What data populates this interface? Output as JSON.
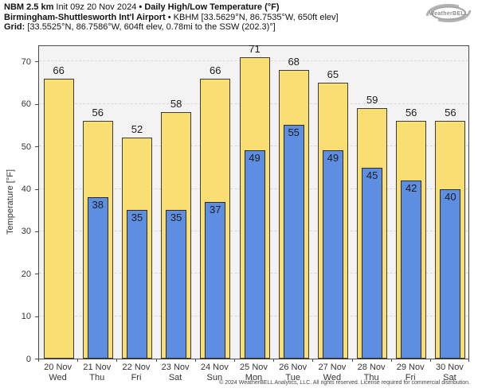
{
  "header": {
    "line1": {
      "bold1": "NBM 2.5 km",
      "normal1": "Init 09z 20 Nov 2024",
      "bullet": "•",
      "bold2": "Daily High/Low Temperature (°F)"
    },
    "line2": {
      "bold1": "Birmingham-Shuttlesworth Int'l Airport",
      "bullet": "•",
      "normal1": "KBHM [33.5629°N, 86.7535°W, 650ft elev]"
    },
    "line3": {
      "bold1": "Grid:",
      "normal1": "[33.5525°N, 86.7586°W, 604ft elev, 0.78mi to the SSW (202.3)°]"
    }
  },
  "logo": {
    "brand": "WeatherBELL",
    "sub": "Analytics LLC"
  },
  "footer": {
    "copyright": "© 2024 WeatherBELL Analytics, LLC. All rights reserved. License required for commercial distribution."
  },
  "chart_data": {
    "type": "bar",
    "title": "NBM 2.5 km Init 09z 20 Nov 2024 • Daily High/Low Temperature (°F)",
    "subtitle": "Birmingham-Shuttlesworth Int'l Airport • KBHM",
    "ylabel": "Temperature [°F]",
    "ylim": [
      0,
      74
    ],
    "yticks": [
      0,
      10,
      20,
      30,
      40,
      50,
      60,
      70
    ],
    "grid": "horizontal-dashed",
    "legend_position": "none",
    "categories": [
      "20 Nov",
      "21 Nov",
      "22 Nov",
      "23 Nov",
      "24 Nov",
      "25 Nov",
      "26 Nov",
      "27 Nov",
      "28 Nov",
      "29 Nov",
      "30 Nov"
    ],
    "weekdays": [
      "Wed",
      "Thu",
      "Fri",
      "Sat",
      "Sun",
      "Mon",
      "Tue",
      "Wed",
      "Thu",
      "Fri",
      "Sat"
    ],
    "series": [
      {
        "name": "Daily High",
        "color": "#f9df71",
        "values": [
          66,
          56,
          52,
          58,
          66,
          71,
          68,
          65,
          59,
          56,
          56
        ]
      },
      {
        "name": "Daily Low",
        "color": "#5d8ee2",
        "values": [
          null,
          38,
          35,
          35,
          37,
          49,
          55,
          49,
          45,
          42,
          40
        ]
      }
    ],
    "colors": {
      "high": "#f9df71",
      "low": "#5d8ee2",
      "bar_border": "#3c3c3c",
      "plot_bg": "#f3f3f3",
      "grid": "#d9d9d9"
    }
  }
}
